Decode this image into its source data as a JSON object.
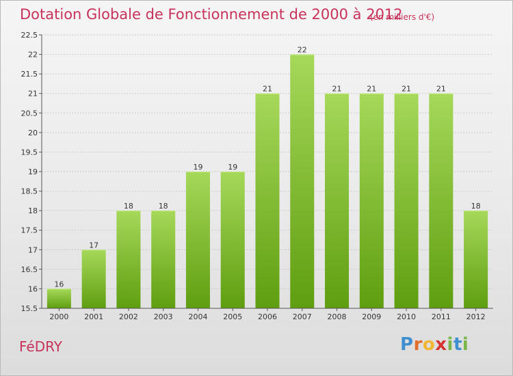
{
  "header": {
    "title": "Dotation Globale de Fonctionnement de 2000 à 2012",
    "subtitle": "(en milliers d'€)"
  },
  "footer": {
    "commune": "FéDRY",
    "logo_text": "Proxiti"
  },
  "colors": {
    "bar_top": "#a6d85a",
    "bar_bottom": "#5f9e10",
    "title": "#c8325a",
    "grid": "#c9c9c9"
  },
  "chart_data": {
    "type": "bar",
    "categories": [
      "2000",
      "2001",
      "2002",
      "2003",
      "2004",
      "2005",
      "2006",
      "2007",
      "2008",
      "2009",
      "2010",
      "2011",
      "2012"
    ],
    "values": [
      16,
      17,
      18,
      18,
      19,
      19,
      21,
      22,
      21,
      21,
      21,
      21,
      18
    ],
    "data_labels": [
      "16",
      "17",
      "18",
      "18",
      "19",
      "19",
      "21",
      "22",
      "21",
      "21",
      "21",
      "21",
      "18"
    ],
    "title": "Dotation Globale de Fonctionnement de 2000 à 2012",
    "ylim": [
      15.5,
      22.5
    ],
    "yticks": [
      15.5,
      16,
      16.5,
      17,
      17.5,
      18,
      18.5,
      19,
      19.5,
      20,
      20.5,
      21,
      21.5,
      22,
      22.5
    ],
    "ytick_labels": [
      "15.5",
      "16",
      "16.5",
      "17",
      "17.5",
      "18",
      "18.5",
      "19",
      "19.5",
      "20",
      "20.5",
      "21",
      "21.5",
      "22",
      "22.5"
    ],
    "grid": true,
    "legend": false
  }
}
